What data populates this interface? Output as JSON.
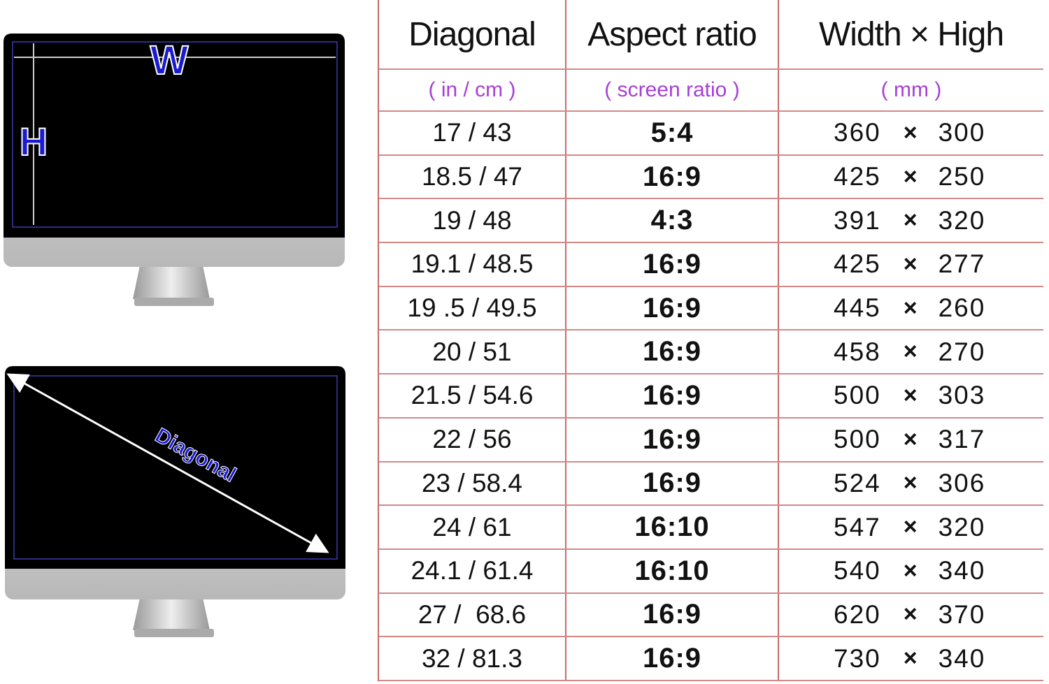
{
  "illustration": {
    "width_label": "W",
    "height_label": "H",
    "diagonal_label": "Diagonal"
  },
  "table": {
    "headers": [
      "Diagonal",
      "Aspect ratio",
      "Width × High"
    ],
    "subheaders": [
      "( in / cm )",
      "( screen ratio )",
      "( mm )"
    ],
    "separator": "×",
    "rows": [
      [
        "17 / 43",
        "5:4",
        "360",
        "300"
      ],
      [
        "18.5 / 47",
        "16:9",
        "425",
        "250"
      ],
      [
        "19 / 48",
        "4:3",
        "391",
        "320"
      ],
      [
        "19.1 / 48.5",
        "16:9",
        "425",
        "277"
      ],
      [
        "19 .5 / 49.5",
        "16:9",
        "445",
        "260"
      ],
      [
        "20 / 51",
        "16:9",
        "458",
        "270"
      ],
      [
        "21.5 / 54.6",
        "16:9",
        "500",
        "303"
      ],
      [
        "22 / 56",
        "16:9",
        "500",
        "317"
      ],
      [
        "23 / 58.4",
        "16:9",
        "524",
        "306"
      ],
      [
        "24 / 61",
        "16:10",
        "547",
        "320"
      ],
      [
        "24.1 / 61.4",
        "16:10",
        "540",
        "340"
      ],
      [
        "27 /  68.6",
        "16:9",
        "620",
        "370"
      ],
      [
        "32 / 81.3",
        "16:9",
        "730",
        "340"
      ]
    ]
  }
}
